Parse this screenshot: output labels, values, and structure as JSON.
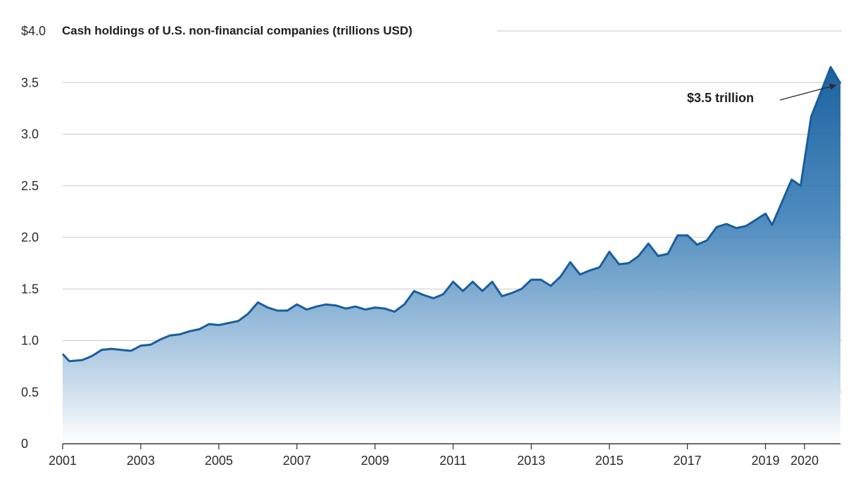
{
  "chart_data": {
    "type": "area",
    "title": "Cash holdings of U.S. non-financial companies (trillions USD)",
    "xlabel": "",
    "ylabel": "",
    "ylim": [
      0,
      4.0
    ],
    "xlim": [
      2001.0,
      2020.92
    ],
    "grid": true,
    "y_ticks": [
      {
        "value": 0,
        "label": "0"
      },
      {
        "value": 0.5,
        "label": "0.5"
      },
      {
        "value": 1.0,
        "label": "1.0"
      },
      {
        "value": 1.5,
        "label": "1.5"
      },
      {
        "value": 2.0,
        "label": "2.0"
      },
      {
        "value": 2.5,
        "label": "2.5"
      },
      {
        "value": 3.0,
        "label": "3.0"
      },
      {
        "value": 3.5,
        "label": "3.5"
      },
      {
        "value": 4.0,
        "label": "$4.0"
      }
    ],
    "x_ticks": [
      {
        "value": 2001,
        "label": "2001"
      },
      {
        "value": 2003,
        "label": "2003"
      },
      {
        "value": 2005,
        "label": "2005"
      },
      {
        "value": 2007,
        "label": "2007"
      },
      {
        "value": 2009,
        "label": "2009"
      },
      {
        "value": 2011,
        "label": "2011"
      },
      {
        "value": 2013,
        "label": "2013"
      },
      {
        "value": 2015,
        "label": "2015"
      },
      {
        "value": 2017,
        "label": "2017"
      },
      {
        "value": 2019,
        "label": "2019"
      },
      {
        "value": 2020,
        "label": "2020"
      }
    ],
    "annotation": {
      "text": "$3.5 trillion",
      "x": 2020.92,
      "y": 3.49
    },
    "series": [
      {
        "x": [
          2001.0,
          2001.17,
          2001.5,
          2001.75,
          2002.0,
          2002.25,
          2002.5,
          2002.75,
          2003.0,
          2003.25,
          2003.5,
          2003.75,
          2004.0,
          2004.25,
          2004.5,
          2004.75,
          2005.0,
          2005.25,
          2005.5,
          2005.75,
          2006.0,
          2006.25,
          2006.5,
          2006.75,
          2007.0,
          2007.25,
          2007.5,
          2007.75,
          2008.0,
          2008.25,
          2008.5,
          2008.75,
          2009.0,
          2009.25,
          2009.5,
          2009.75,
          2010.0,
          2010.25,
          2010.5,
          2010.75,
          2011.0,
          2011.25,
          2011.5,
          2011.75,
          2012.0,
          2012.25,
          2012.5,
          2012.75,
          2013.0,
          2013.25,
          2013.5,
          2013.75,
          2014.0,
          2014.25,
          2014.5,
          2014.75,
          2015.0,
          2015.25,
          2015.5,
          2015.75,
          2016.0,
          2016.25,
          2016.5,
          2016.75,
          2017.0,
          2017.25,
          2017.5,
          2017.75,
          2018.0,
          2018.25,
          2018.5,
          2018.75,
          2019.0,
          2019.17,
          2019.67,
          2019.9,
          2020.17,
          2020.67,
          2020.92
        ],
        "values": [
          0.87,
          0.8,
          0.81,
          0.85,
          0.91,
          0.92,
          0.91,
          0.9,
          0.95,
          0.96,
          1.01,
          1.05,
          1.06,
          1.09,
          1.11,
          1.16,
          1.15,
          1.17,
          1.19,
          1.26,
          1.37,
          1.32,
          1.29,
          1.29,
          1.35,
          1.3,
          1.33,
          1.35,
          1.34,
          1.31,
          1.33,
          1.3,
          1.32,
          1.31,
          1.28,
          1.35,
          1.48,
          1.44,
          1.41,
          1.45,
          1.57,
          1.48,
          1.57,
          1.48,
          1.57,
          1.43,
          1.46,
          1.5,
          1.59,
          1.59,
          1.53,
          1.62,
          1.76,
          1.64,
          1.68,
          1.71,
          1.86,
          1.74,
          1.75,
          1.82,
          1.94,
          1.82,
          1.84,
          2.02,
          2.02,
          1.93,
          1.97,
          2.1,
          2.13,
          2.09,
          2.11,
          2.17,
          2.23,
          2.12,
          2.56,
          2.5,
          3.17,
          3.65,
          3.49
        ]
      }
    ]
  },
  "colors": {
    "line": "#1a5d9e",
    "fill_top": "#1b62a0",
    "fill_bottom": "#ffffff",
    "grid": "#c9c9c9",
    "text": "#2b2b2b"
  }
}
